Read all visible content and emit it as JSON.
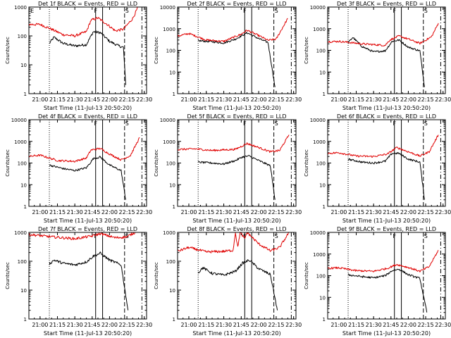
{
  "chart_data": [
    {
      "type": "line",
      "title": "Det 1f BLACK = Events, RED = LLD",
      "xlabel": "Start Time (11-Jul-13 20:50:20)",
      "ylabel": "Counts/sec",
      "x_ticks": [
        "21:00",
        "21:15",
        "21:30",
        "21:45",
        "22:00",
        "22:15",
        "22:30"
      ],
      "y_ticks": [
        "1",
        "10",
        "100",
        "1000"
      ],
      "marker_labels": [
        "E",
        "F",
        "S"
      ],
      "series": [
        {
          "color": "#000000",
          "values": [
            [
              "21:08",
              55
            ],
            [
              "21:12",
              90
            ],
            [
              "21:20",
              55
            ],
            [
              "21:30",
              45
            ],
            [
              "21:40",
              50
            ],
            [
              "21:46",
              140
            ],
            [
              "21:52",
              130
            ],
            [
              "22:00",
              65
            ],
            [
              "22:08",
              45
            ],
            [
              "22:12",
              40
            ],
            [
              "22:14",
              2
            ]
          ]
        },
        {
          "color": "#e00000",
          "values": [
            [
              "20:50",
              250
            ],
            [
              "21:00",
              250
            ],
            [
              "21:10",
              170
            ],
            [
              "21:20",
              110
            ],
            [
              "21:30",
              100
            ],
            [
              "21:40",
              140
            ],
            [
              "21:44",
              350
            ],
            [
              "21:50",
              420
            ],
            [
              "21:58",
              250
            ],
            [
              "22:05",
              150
            ],
            [
              "22:12",
              170
            ],
            [
              "22:20",
              400
            ],
            [
              "22:26",
              1300
            ]
          ]
        }
      ],
      "ylim": [
        1,
        1000
      ]
    },
    {
      "type": "line",
      "title": "Det 2f BLACK = Events, RED = LLD",
      "xlabel": "Start Time (11-Jul-13 20:50:20)",
      "ylabel": "Counts/sec",
      "x_ticks": [
        "21:00",
        "21:15",
        "21:30",
        "21:45",
        "22:00",
        "22:15",
        "22:30"
      ],
      "y_ticks": [
        "1",
        "10",
        "100",
        "1000",
        "10000"
      ],
      "marker_labels": [
        "F",
        "S"
      ],
      "series": [
        {
          "color": "#000000",
          "values": [
            [
              "21:08",
              280
            ],
            [
              "21:20",
              250
            ],
            [
              "21:30",
              220
            ],
            [
              "21:40",
              330
            ],
            [
              "21:50",
              650
            ],
            [
              "22:00",
              350
            ],
            [
              "22:08",
              230
            ],
            [
              "22:14",
              2
            ]
          ]
        },
        {
          "color": "#e00000",
          "values": [
            [
              "20:50",
              450
            ],
            [
              "21:00",
              600
            ],
            [
              "21:15",
              300
            ],
            [
              "21:30",
              260
            ],
            [
              "21:45",
              560
            ],
            [
              "21:50",
              850
            ],
            [
              "22:00",
              480
            ],
            [
              "22:08",
              290
            ],
            [
              "22:15",
              330
            ],
            [
              "22:25",
              3000
            ]
          ]
        }
      ],
      "ylim": [
        1,
        10000
      ]
    },
    {
      "type": "line",
      "title": "Det 3f BLACK = Events, RED = LLD",
      "xlabel": "Start Time (11-Jul-13 20:50:20)",
      "ylabel": "Counts/sec",
      "x_ticks": [
        "21:00",
        "21:15",
        "21:30",
        "21:45",
        "22:00",
        "22:15",
        "22:30"
      ],
      "y_ticks": [
        "1",
        "10",
        "100",
        "1000",
        "10000"
      ],
      "marker_labels": [
        "F",
        "S"
      ],
      "series": [
        {
          "color": "#000000",
          "values": [
            [
              "21:08",
              220
            ],
            [
              "21:12",
              400
            ],
            [
              "21:20",
              150
            ],
            [
              "21:30",
              85
            ],
            [
              "21:40",
              95
            ],
            [
              "21:46",
              260
            ],
            [
              "21:52",
              300
            ],
            [
              "22:00",
              140
            ],
            [
              "22:10",
              95
            ],
            [
              "22:14",
              2
            ]
          ]
        },
        {
          "color": "#e00000",
          "values": [
            [
              "20:50",
              250
            ],
            [
              "21:00",
              260
            ],
            [
              "21:20",
              200
            ],
            [
              "21:40",
              170
            ],
            [
              "21:44",
              300
            ],
            [
              "21:52",
              460
            ],
            [
              "22:00",
              330
            ],
            [
              "22:10",
              210
            ],
            [
              "22:20",
              420
            ],
            [
              "22:26",
              1800
            ]
          ]
        }
      ],
      "ylim": [
        1,
        10000
      ]
    },
    {
      "type": "line",
      "title": "Det 4f BLACK = Events, RED = LLD",
      "xlabel": "Start Time (11-Jul-13 20:50:20)",
      "ylabel": "Counts/sec",
      "x_ticks": [
        "21:00",
        "21:15",
        "21:30",
        "21:45",
        "22:00",
        "22:15",
        "22:30"
      ],
      "y_ticks": [
        "1",
        "10",
        "100",
        "1000",
        "10000"
      ],
      "marker_labels": [
        "F",
        "S"
      ],
      "series": [
        {
          "color": "#000000",
          "values": [
            [
              "21:08",
              80
            ],
            [
              "21:20",
              55
            ],
            [
              "21:30",
              45
            ],
            [
              "21:40",
              60
            ],
            [
              "21:46",
              160
            ],
            [
              "21:52",
              190
            ],
            [
              "22:00",
              80
            ],
            [
              "22:10",
              45
            ],
            [
              "22:14",
              2
            ]
          ]
        },
        {
          "color": "#e00000",
          "values": [
            [
              "20:50",
              200
            ],
            [
              "21:00",
              230
            ],
            [
              "21:15",
              130
            ],
            [
              "21:30",
              120
            ],
            [
              "21:40",
              170
            ],
            [
              "21:44",
              400
            ],
            [
              "21:52",
              470
            ],
            [
              "22:00",
              260
            ],
            [
              "22:10",
              140
            ],
            [
              "22:18",
              220
            ],
            [
              "22:26",
              1500
            ]
          ]
        }
      ],
      "ylim": [
        1,
        10000
      ]
    },
    {
      "type": "line",
      "title": "Det 5f BLACK = Events, RED = LLD",
      "xlabel": "Start Time (11-Jul-13 20:50:20)",
      "ylabel": "Counts/sec",
      "x_ticks": [
        "21:00",
        "21:15",
        "21:30",
        "21:45",
        "22:00",
        "22:15",
        "22:30"
      ],
      "y_ticks": [
        "1",
        "10",
        "100",
        "1000",
        "10000"
      ],
      "marker_labels": [
        "F",
        "S"
      ],
      "series": [
        {
          "color": "#000000",
          "values": [
            [
              "21:08",
              110
            ],
            [
              "21:20",
              100
            ],
            [
              "21:30",
              90
            ],
            [
              "21:40",
              130
            ],
            [
              "21:46",
              190
            ],
            [
              "21:52",
              210
            ],
            [
              "22:00",
              130
            ],
            [
              "22:10",
              75
            ],
            [
              "22:14",
              2
            ]
          ]
        },
        {
          "color": "#e00000",
          "values": [
            [
              "20:50",
              420
            ],
            [
              "21:05",
              450
            ],
            [
              "21:20",
              380
            ],
            [
              "21:40",
              430
            ],
            [
              "21:50",
              800
            ],
            [
              "22:00",
              520
            ],
            [
              "22:10",
              330
            ],
            [
              "22:18",
              380
            ],
            [
              "22:26",
              2000
            ]
          ]
        }
      ],
      "ylim": [
        1,
        10000
      ]
    },
    {
      "type": "line",
      "title": "Det 6f BLACK = Events, RED = LLD",
      "xlabel": "Start Time (11-Jul-13 20:50:20)",
      "ylabel": "Counts/sec",
      "x_ticks": [
        "21:00",
        "21:15",
        "21:30",
        "21:45",
        "22:00",
        "22:15",
        "22:30"
      ],
      "y_ticks": [
        "1",
        "10",
        "100",
        "1000",
        "10000"
      ],
      "marker_labels": [
        "F",
        "S"
      ],
      "series": [
        {
          "color": "#000000",
          "values": [
            [
              "21:08",
              150
            ],
            [
              "21:20",
              110
            ],
            [
              "21:30",
              100
            ],
            [
              "21:40",
              120
            ],
            [
              "21:46",
              280
            ],
            [
              "21:52",
              280
            ],
            [
              "22:00",
              150
            ],
            [
              "22:10",
              110
            ],
            [
              "22:14",
              2
            ]
          ]
        },
        {
          "color": "#e00000",
          "values": [
            [
              "20:50",
              280
            ],
            [
              "21:00",
              300
            ],
            [
              "21:15",
              210
            ],
            [
              "21:30",
              200
            ],
            [
              "21:42",
              260
            ],
            [
              "21:50",
              520
            ],
            [
              "22:00",
              330
            ],
            [
              "22:10",
              210
            ],
            [
              "22:18",
              330
            ],
            [
              "22:26",
              2000
            ]
          ]
        }
      ],
      "ylim": [
        1,
        10000
      ]
    },
    {
      "type": "line",
      "title": "Det 7f BLACK = Events, RED = LLD",
      "xlabel": "Start Time (11-Jul-13 20:50:20)",
      "ylabel": "Counts/sec",
      "x_ticks": [
        "21:00",
        "21:15",
        "21:30",
        "21:45",
        "22:00",
        "22:15",
        "22:30"
      ],
      "y_ticks": [
        "1",
        "10",
        "100",
        "1000"
      ],
      "marker_labels": [
        "F",
        "S"
      ],
      "series": [
        {
          "color": "#000000",
          "values": [
            [
              "21:08",
              80
            ],
            [
              "21:12",
              110
            ],
            [
              "21:20",
              85
            ],
            [
              "21:30",
              75
            ],
            [
              "21:40",
              95
            ],
            [
              "21:46",
              150
            ],
            [
              "21:52",
              190
            ],
            [
              "22:00",
              110
            ],
            [
              "22:10",
              75
            ],
            [
              "22:16",
              2
            ]
          ]
        },
        {
          "color": "#e00000",
          "values": [
            [
              "20:50",
              850
            ],
            [
              "21:10",
              700
            ],
            [
              "21:30",
              600
            ],
            [
              "21:45",
              750
            ],
            [
              "21:52",
              900
            ],
            [
              "22:05",
              650
            ],
            [
              "22:15",
              700
            ],
            [
              "22:22",
              1000
            ]
          ]
        }
      ],
      "ylim": [
        1,
        1000
      ]
    },
    {
      "type": "line",
      "title": "Det 8f BLACK = Events, RED = LLD",
      "xlabel": "Start Time (11-Jul-13 20:50:20)",
      "ylabel": "Counts/sec",
      "x_ticks": [
        "21:00",
        "21:15",
        "21:30",
        "21:45",
        "22:00",
        "22:15",
        "22:30"
      ],
      "y_ticks": [
        "1",
        "10",
        "100",
        "1000"
      ],
      "marker_labels": [
        "F",
        "S"
      ],
      "series": [
        {
          "color": "#000000",
          "values": [
            [
              "21:08",
              40
            ],
            [
              "21:12",
              60
            ],
            [
              "21:20",
              38
            ],
            [
              "21:30",
              33
            ],
            [
              "21:40",
              45
            ],
            [
              "21:46",
              85
            ],
            [
              "21:52",
              110
            ],
            [
              "22:00",
              55
            ],
            [
              "22:10",
              35
            ],
            [
              "22:16",
              2
            ]
          ]
        },
        {
          "color": "#e00000",
          "values": [
            [
              "20:50",
              220
            ],
            [
              "21:00",
              300
            ],
            [
              "21:15",
              210
            ],
            [
              "21:30",
              220
            ],
            [
              "21:38",
              240
            ],
            [
              "21:40",
              1000
            ],
            [
              "21:42",
              300
            ],
            [
              "21:44",
              1000
            ],
            [
              "21:48",
              600
            ],
            [
              "21:50",
              1000
            ],
            [
              "22:00",
              400
            ],
            [
              "22:10",
              230
            ],
            [
              "22:18",
              300
            ],
            [
              "22:26",
              1000
            ]
          ]
        }
      ],
      "ylim": [
        1,
        1000
      ]
    },
    {
      "type": "line",
      "title": "Det 9f BLACK = Events, RED = LLD",
      "xlabel": "Start Time (11-Jul-13 20:50:20)",
      "ylabel": "Counts/sec",
      "x_ticks": [
        "21:00",
        "21:15",
        "21:30",
        "21:45",
        "22:00",
        "22:15",
        "22:30"
      ],
      "y_ticks": [
        "1",
        "10",
        "100",
        "1000",
        "10000"
      ],
      "marker_labels": [
        "F",
        "S"
      ],
      "series": [
        {
          "color": "#000000",
          "values": [
            [
              "21:08",
              110
            ],
            [
              "21:20",
              90
            ],
            [
              "21:30",
              80
            ],
            [
              "21:40",
              100
            ],
            [
              "21:46",
              170
            ],
            [
              "21:52",
              200
            ],
            [
              "22:00",
              110
            ],
            [
              "22:10",
              75
            ],
            [
              "22:16",
              2
            ]
          ]
        },
        {
          "color": "#e00000",
          "values": [
            [
              "20:50",
              220
            ],
            [
              "21:00",
              230
            ],
            [
              "21:15",
              170
            ],
            [
              "21:30",
              160
            ],
            [
              "21:42",
              220
            ],
            [
              "21:50",
              330
            ],
            [
              "22:00",
              240
            ],
            [
              "22:10",
              160
            ],
            [
              "22:18",
              260
            ],
            [
              "22:26",
              1500
            ]
          ]
        }
      ],
      "ylim": [
        1,
        10000
      ]
    }
  ]
}
